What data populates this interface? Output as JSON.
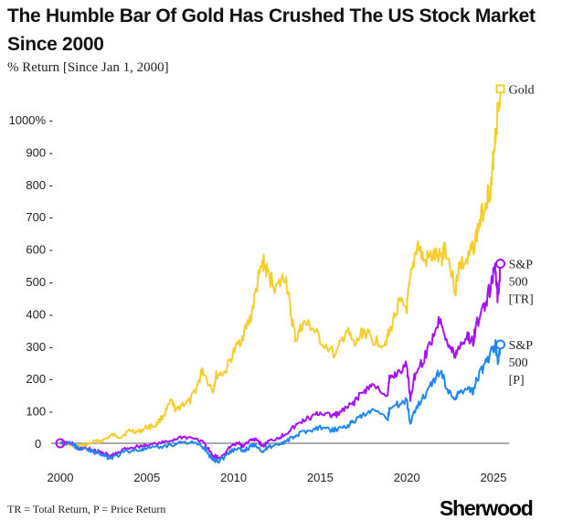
{
  "chart_data": {
    "type": "line",
    "title": "The Humble Bar Of Gold Has Crushed The US Stock Market Since 2000",
    "subtitle": "% Return [Since Jan 1, 2000]",
    "xlabel": "",
    "ylabel": "% Return",
    "xlim": [
      2000,
      2025.5
    ],
    "ylim": [
      -60,
      1100
    ],
    "xticks": [
      2000,
      2005,
      2010,
      2015,
      2020,
      2025
    ],
    "xtick_labels": [
      "2000",
      "2005",
      "2010",
      "2015",
      "2020",
      "2025"
    ],
    "yticks": [
      0,
      100,
      200,
      300,
      400,
      500,
      600,
      700,
      800,
      900,
      1000
    ],
    "ytick_labels": [
      "0",
      "100",
      "200",
      "300",
      "400",
      "500",
      "600",
      "700",
      "800",
      "900",
      "1000%"
    ],
    "series": [
      {
        "name": "Gold",
        "end_label": [
          "Gold"
        ],
        "color": "#F5CE2E",
        "marker": "square",
        "x": [
          2000,
          2000.5,
          2001,
          2001.5,
          2002,
          2002.5,
          2003,
          2003.5,
          2004,
          2004.5,
          2005,
          2005.5,
          2006,
          2006.4,
          2006.7,
          2007,
          2007.5,
          2008,
          2008.2,
          2008.8,
          2009,
          2009.5,
          2010,
          2010.5,
          2011,
          2011.4,
          2011.7,
          2012,
          2012.5,
          2013,
          2013.3,
          2013.6,
          2014,
          2014.5,
          2015,
          2015.9,
          2016.5,
          2017,
          2017.5,
          2018,
          2018.7,
          2019,
          2019.5,
          2020,
          2020.2,
          2020.6,
          2021,
          2021.5,
          2022,
          2022.2,
          2022.8,
          2023,
          2023.5,
          2023.9,
          2024.2,
          2024.6,
          2024.9,
          2025,
          2025.2,
          2025.4
        ],
        "y": [
          0,
          -5,
          -10,
          -5,
          5,
          10,
          25,
          20,
          40,
          35,
          50,
          55,
          90,
          130,
          100,
          120,
          130,
          190,
          230,
          160,
          210,
          220,
          280,
          330,
          390,
          500,
          560,
          520,
          480,
          520,
          400,
          320,
          370,
          360,
          320,
          270,
          350,
          300,
          350,
          320,
          310,
          340,
          430,
          420,
          500,
          620,
          560,
          580,
          570,
          620,
          470,
          550,
          560,
          620,
          680,
          760,
          800,
          900,
          1000,
          1095
        ]
      },
      {
        "name": "S&P 500 [TR]",
        "end_label": [
          "S&P",
          "500",
          "[TR]"
        ],
        "color": "#A512F5",
        "marker": "circle",
        "x": [
          2000,
          2000.7,
          2001,
          2001.7,
          2002,
          2002.5,
          2002.8,
          2003.2,
          2003.8,
          2004.5,
          2005,
          2005.8,
          2006.5,
          2007,
          2007.8,
          2008.3,
          2008.8,
          2009.2,
          2009.8,
          2010.3,
          2010.5,
          2011,
          2011.3,
          2011.7,
          2012,
          2012.7,
          2013,
          2013.5,
          2014,
          2014.7,
          2015,
          2015.6,
          2016,
          2016.6,
          2017,
          2017.5,
          2018,
          2018.9,
          2019,
          2019.5,
          2020,
          2020.2,
          2020.5,
          2021,
          2021.5,
          2021.95,
          2022.4,
          2022.8,
          2023,
          2023.5,
          2023.8,
          2024,
          2024.5,
          2024.95,
          2025.1,
          2025.25,
          2025.4
        ],
        "y": [
          0,
          0,
          -15,
          -20,
          -25,
          -30,
          -40,
          -35,
          -15,
          -10,
          -5,
          0,
          10,
          20,
          15,
          0,
          -40,
          -45,
          -10,
          0,
          -10,
          10,
          15,
          -10,
          5,
          20,
          30,
          50,
          70,
          85,
          95,
          85,
          90,
          110,
          130,
          160,
          180,
          150,
          200,
          220,
          240,
          140,
          220,
          260,
          330,
          390,
          300,
          270,
          300,
          330,
          310,
          360,
          430,
          500,
          560,
          440,
          555
        ]
      },
      {
        "name": "S&P 500 [P]",
        "end_label": [
          "S&P",
          "500",
          "[P]"
        ],
        "color": "#1E88F0",
        "marker": "circle",
        "x": [
          2000,
          2000.7,
          2001,
          2001.7,
          2002,
          2002.5,
          2002.8,
          2003.2,
          2003.8,
          2004.5,
          2005,
          2005.8,
          2006.5,
          2007,
          2007.8,
          2008.3,
          2008.8,
          2009.2,
          2009.8,
          2010.3,
          2010.5,
          2011,
          2011.3,
          2011.7,
          2012,
          2012.7,
          2013,
          2013.5,
          2014,
          2014.7,
          2015,
          2015.6,
          2016,
          2016.6,
          2017,
          2017.5,
          2018,
          2018.9,
          2019,
          2019.5,
          2020,
          2020.2,
          2020.5,
          2021,
          2021.5,
          2021.95,
          2022.4,
          2022.8,
          2023,
          2023.5,
          2023.8,
          2024,
          2024.5,
          2024.95,
          2025.1,
          2025.25,
          2025.4
        ],
        "y": [
          0,
          -2,
          -15,
          -22,
          -28,
          -35,
          -45,
          -40,
          -25,
          -20,
          -18,
          -12,
          -5,
          5,
          0,
          -15,
          -50,
          -55,
          -25,
          -15,
          -25,
          -10,
          -5,
          -25,
          -12,
          0,
          5,
          20,
          35,
          45,
          50,
          40,
          45,
          55,
          70,
          85,
          100,
          75,
          110,
          120,
          135,
          60,
          110,
          145,
          190,
          225,
          160,
          140,
          155,
          175,
          160,
          195,
          240,
          290,
          310,
          245,
          305
        ]
      }
    ],
    "gridlines": false,
    "legend": "end-of-line labels",
    "footnote": "TR = Total Return, P = Price Return"
  },
  "brand": "Sherwood"
}
